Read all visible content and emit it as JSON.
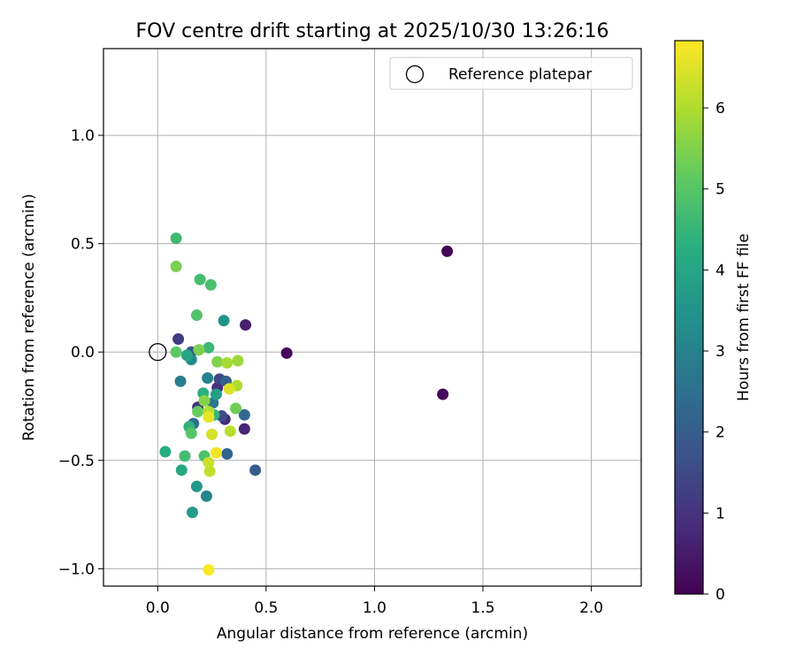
{
  "chart_data": {
    "type": "scatter",
    "title": "FOV centre drift starting at 2025/10/30 13:26:16",
    "xlabel": "Angular distance from reference (arcmin)",
    "ylabel": "Rotation from reference (arcmin)",
    "xlim": [
      -0.25,
      2.23
    ],
    "ylim": [
      -1.08,
      1.4
    ],
    "xticks": [
      0.0,
      0.5,
      1.0,
      1.5,
      2.0
    ],
    "xtick_labels": [
      "0.0",
      "0.5",
      "1.0",
      "1.5",
      "2.0"
    ],
    "yticks": [
      -1.0,
      -0.5,
      0.0,
      0.5,
      1.0
    ],
    "ytick_labels": [
      "−1.0",
      "−0.5",
      "0.0",
      "0.5",
      "1.0"
    ],
    "grid": true,
    "legend": {
      "position": "top-right",
      "entries": [
        "Reference platepar"
      ]
    },
    "reference_point": {
      "x": 0.0,
      "y": 0.0
    },
    "colorbar": {
      "label": "Hours from first FF file",
      "range": [
        0,
        6.83
      ],
      "ticks": [
        0,
        1,
        2,
        3,
        4,
        5,
        6
      ],
      "tick_labels": [
        "0",
        "1",
        "2",
        "3",
        "4",
        "5",
        "6"
      ],
      "colormap": "viridis"
    },
    "series": [
      {
        "name": "FOV centre drift",
        "points": [
          {
            "x": 1.335,
            "y": 0.465,
            "h": 0.05
          },
          {
            "x": 0.595,
            "y": -0.005,
            "h": 0.1
          },
          {
            "x": 1.315,
            "y": -0.195,
            "h": 0.15
          },
          {
            "x": 0.405,
            "y": 0.125,
            "h": 0.6
          },
          {
            "x": 0.4,
            "y": -0.355,
            "h": 0.7
          },
          {
            "x": 0.31,
            "y": -0.31,
            "h": 0.8
          },
          {
            "x": 0.275,
            "y": -0.165,
            "h": 0.9
          },
          {
            "x": 0.185,
            "y": -0.255,
            "h": 1.0
          },
          {
            "x": 0.095,
            "y": 0.06,
            "h": 1.2
          },
          {
            "x": 0.285,
            "y": -0.125,
            "h": 1.4
          },
          {
            "x": 0.295,
            "y": -0.295,
            "h": 1.6
          },
          {
            "x": 0.155,
            "y": 0.0,
            "h": 1.8
          },
          {
            "x": 0.45,
            "y": -0.545,
            "h": 2.0
          },
          {
            "x": 0.315,
            "y": -0.135,
            "h": 2.1
          },
          {
            "x": 0.32,
            "y": -0.47,
            "h": 2.2
          },
          {
            "x": 0.4,
            "y": -0.29,
            "h": 2.3
          },
          {
            "x": 0.165,
            "y": -0.33,
            "h": 2.5
          },
          {
            "x": 0.255,
            "y": -0.235,
            "h": 2.7
          },
          {
            "x": 0.105,
            "y": -0.135,
            "h": 2.9
          },
          {
            "x": 0.23,
            "y": -0.12,
            "h": 3.0
          },
          {
            "x": 0.225,
            "y": -0.665,
            "h": 3.1
          },
          {
            "x": 0.155,
            "y": -0.035,
            "h": 3.2
          },
          {
            "x": 0.305,
            "y": 0.145,
            "h": 3.5
          },
          {
            "x": 0.18,
            "y": -0.62,
            "h": 3.6
          },
          {
            "x": 0.16,
            "y": -0.74,
            "h": 3.7
          },
          {
            "x": 0.27,
            "y": -0.195,
            "h": 3.8
          },
          {
            "x": 0.135,
            "y": -0.015,
            "h": 4.0
          },
          {
            "x": 0.11,
            "y": -0.545,
            "h": 4.1
          },
          {
            "x": 0.035,
            "y": -0.46,
            "h": 4.2
          },
          {
            "x": 0.21,
            "y": -0.19,
            "h": 4.3
          },
          {
            "x": 0.145,
            "y": -0.345,
            "h": 4.4
          },
          {
            "x": 0.26,
            "y": -0.29,
            "h": 4.5
          },
          {
            "x": 0.235,
            "y": 0.02,
            "h": 4.6
          },
          {
            "x": 0.085,
            "y": 0.525,
            "h": 4.65
          },
          {
            "x": 0.125,
            "y": -0.48,
            "h": 4.7
          },
          {
            "x": 0.195,
            "y": 0.335,
            "h": 4.75
          },
          {
            "x": 0.245,
            "y": 0.31,
            "h": 4.8
          },
          {
            "x": 0.215,
            "y": -0.48,
            "h": 4.85
          },
          {
            "x": 0.18,
            "y": 0.17,
            "h": 4.9
          },
          {
            "x": 0.155,
            "y": -0.375,
            "h": 5.0
          },
          {
            "x": 0.085,
            "y": 0.0,
            "h": 5.1
          },
          {
            "x": 0.185,
            "y": -0.275,
            "h": 5.2
          },
          {
            "x": 0.36,
            "y": -0.26,
            "h": 5.3
          },
          {
            "x": 0.085,
            "y": 0.395,
            "h": 5.4
          },
          {
            "x": 0.19,
            "y": 0.01,
            "h": 5.45
          },
          {
            "x": 0.275,
            "y": -0.045,
            "h": 5.5
          },
          {
            "x": 0.215,
            "y": -0.225,
            "h": 5.55
          },
          {
            "x": 0.37,
            "y": -0.04,
            "h": 5.8
          },
          {
            "x": 0.32,
            "y": -0.05,
            "h": 5.9
          },
          {
            "x": 0.365,
            "y": -0.155,
            "h": 6.0
          },
          {
            "x": 0.235,
            "y": -0.275,
            "h": 6.05
          },
          {
            "x": 0.335,
            "y": -0.365,
            "h": 6.1
          },
          {
            "x": 0.24,
            "y": -0.55,
            "h": 6.2
          },
          {
            "x": 0.235,
            "y": -0.51,
            "h": 6.3
          },
          {
            "x": 0.25,
            "y": -0.38,
            "h": 6.4
          },
          {
            "x": 0.33,
            "y": -0.17,
            "h": 6.5
          },
          {
            "x": 0.235,
            "y": -0.3,
            "h": 6.6
          },
          {
            "x": 0.27,
            "y": -0.465,
            "h": 6.7
          },
          {
            "x": 0.235,
            "y": -1.005,
            "h": 6.8
          }
        ]
      }
    ]
  }
}
